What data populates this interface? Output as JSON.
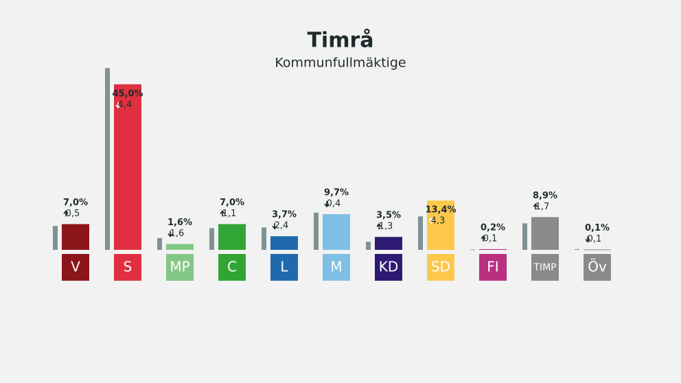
{
  "chart_data": {
    "type": "bar",
    "title": "Timrå",
    "subtitle": "Kommunfullmäktige",
    "categories": [
      "V",
      "S",
      "MP",
      "C",
      "L",
      "M",
      "KD",
      "SD",
      "FI",
      "TIMP",
      "Öv"
    ],
    "colors": [
      "#8b1619",
      "#e0303f",
      "#83c784",
      "#31a535",
      "#1f6aad",
      "#7fbfe5",
      "#2e1a72",
      "#fcc84b",
      "#b8307f",
      "#8a8a8a",
      "#8a8a8a"
    ],
    "values": [
      7.0,
      45.0,
      1.6,
      7.0,
      3.7,
      9.7,
      3.5,
      13.4,
      0.2,
      8.9,
      0.1
    ],
    "value_labels": [
      "7,0%",
      "45,0%",
      "1,6%",
      "7,0%",
      "3,7%",
      "9,7%",
      "3,5%",
      "13,4%",
      "0,2%",
      "8,9%",
      "0,1%"
    ],
    "changes": [
      0.5,
      -4.4,
      -1.6,
      1.1,
      -2.4,
      -0.4,
      1.3,
      4.3,
      0.1,
      1.7,
      -0.1
    ],
    "change_labels": [
      "0,5",
      "4,4",
      "1,6",
      "1,1",
      "2,4",
      "0,4",
      "1,3",
      "4,3",
      "0,1",
      "1,7",
      "0,1"
    ],
    "previous_values": [
      6.5,
      49.4,
      3.2,
      5.9,
      6.1,
      10.1,
      2.2,
      9.1,
      0.1,
      7.2,
      0.2
    ],
    "previous_color": "#7f9294",
    "ylim": [
      0,
      50
    ]
  }
}
